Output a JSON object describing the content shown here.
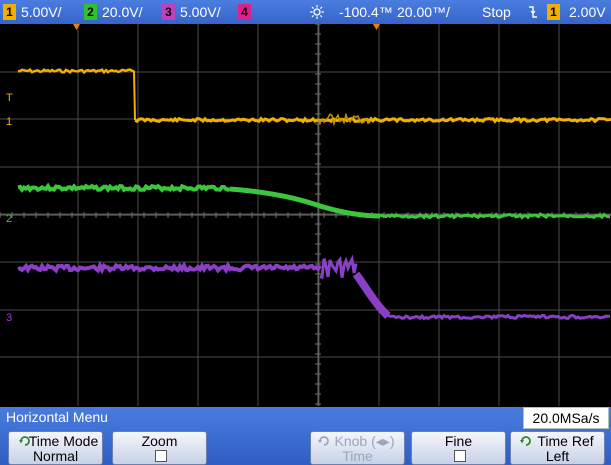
{
  "topbar": {
    "ch1": {
      "num": "1",
      "scale": "5.00V/",
      "color": "#f0b000"
    },
    "ch2": {
      "num": "2",
      "scale": "20.0V/",
      "color": "#2ec22e"
    },
    "ch3": {
      "num": "3",
      "scale": "5.00V/",
      "color": "#9b3fd0"
    },
    "ch4": {
      "num": "4",
      "color": "#e0208a"
    },
    "trigger_icon": "sun-trigger-icon",
    "time_offset": "-100.4™",
    "time_scale": "20.00™/",
    "run_state": "Stop",
    "edge_icon": "falling-edge-icon",
    "trig_channel": "1",
    "trig_level": "2.00V"
  },
  "markers": {
    "trigger_level": "T",
    "ch1": "1",
    "ch2": "2",
    "ch3": "3"
  },
  "menu": {
    "title": "Horizontal Menu",
    "sample_rate": "20.0MSa/s",
    "softkeys": [
      {
        "line1": "Time Mode",
        "line2": "Normal",
        "icon": "rotate-knob-icon",
        "enabled": true
      },
      {
        "line1": "Zoom",
        "line2": "",
        "checkbox": true,
        "enabled": true
      },
      {
        "line1": "Knob (◂▸)",
        "line2": "Time",
        "icon": "rotate-knob-icon",
        "enabled": false
      },
      {
        "line1": "Fine",
        "line2": "",
        "checkbox": true,
        "enabled": true
      },
      {
        "line1": "Time Ref",
        "line2": "Left",
        "icon": "rotate-knob-icon",
        "enabled": true
      }
    ]
  },
  "colors": {
    "grid": "#4a4a4a",
    "ch1": "#f0b000",
    "ch2": "#3cc63c",
    "ch3": "#8a3fc4",
    "topbar": "#3a6bd0",
    "menubar": "#3565c8"
  }
}
